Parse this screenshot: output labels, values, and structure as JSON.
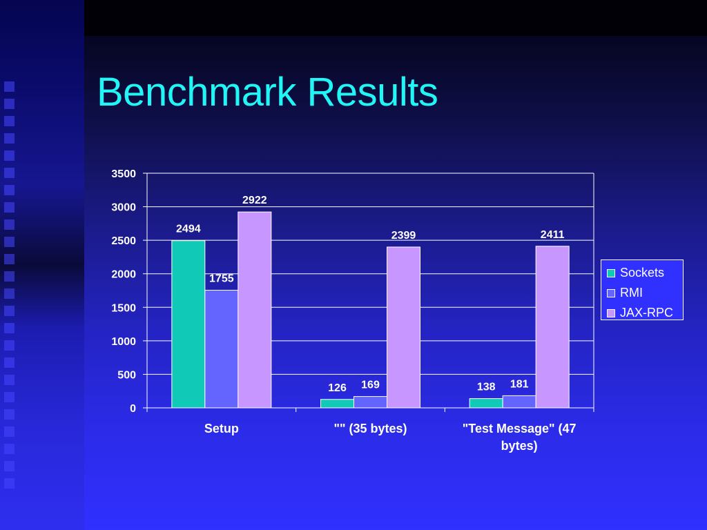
{
  "slide": {
    "title": "Benchmark Results"
  },
  "colors": {
    "background": "#3030ff",
    "title": "#22f5f5",
    "axis_text": "#ffffff"
  },
  "chart_data": {
    "type": "bar",
    "categories": [
      "Setup",
      "\"\" (35 bytes)",
      "\"Test Message\" (47 bytes)"
    ],
    "series": [
      {
        "name": "Sockets",
        "values": [
          2494,
          126,
          138
        ],
        "color": "#11c9b7"
      },
      {
        "name": "RMI",
        "values": [
          1755,
          169,
          181
        ],
        "color": "#6464ff"
      },
      {
        "name": "JAX-RPC",
        "values": [
          2922,
          2399,
          2411
        ],
        "color": "#c896ff"
      }
    ],
    "title": "",
    "xlabel": "",
    "ylabel": "",
    "ylim": [
      0,
      3500
    ],
    "yticks": [
      0,
      500,
      1000,
      1500,
      2000,
      2500,
      3000,
      3500
    ],
    "grid": true,
    "legend_position": "right",
    "data_labels": true
  }
}
